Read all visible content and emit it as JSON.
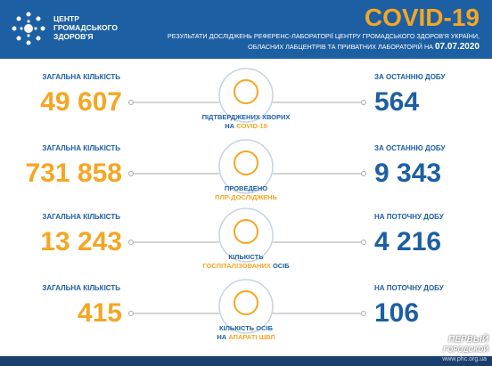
{
  "header": {
    "org": [
      "ЦЕНТР",
      "ГРОМАДСЬКОГО",
      "ЗДОРОВ'Я"
    ],
    "title": "COVID-19",
    "subtitle_line1": "РЕЗУЛЬТАТИ ДОСЛІДЖЕНЬ РЕФЕРЕНС-ЛАБОРАТОРІЇ ЦЕНТРУ ГРОМАДСЬКОГО ЗДОРОВ'Я УКРАЇНИ,",
    "subtitle_line2": "ОБЛАСНИХ ЛАБЦЕНТРІВ ТА ПРИВАТНИХ ЛАБОРАТОРІЙ НА",
    "date": "07.07.2020"
  },
  "rows": [
    {
      "left_label": "ЗАГАЛЬНА КІЛЬКІСТЬ",
      "left_value": "49 607",
      "right_label": "ЗА ОСТАННЮ ДОБУ",
      "right_value": "564",
      "caption": [
        [
          {
            "text": "ПІДТВЕРДЖЕНИХ ХВОРИХ",
            "accent": false
          }
        ],
        [
          {
            "text": "НА",
            "accent": false
          },
          {
            "text": "COVID-19",
            "accent": true
          }
        ]
      ]
    },
    {
      "left_label": "ЗАГАЛЬНА КІЛЬКІСТЬ",
      "left_value": "731 858",
      "right_label": "ЗА ОСТАННЮ ДОБУ",
      "right_value": "9 343",
      "caption": [
        [
          {
            "text": "ПРОВЕДЕНО",
            "accent": false
          }
        ],
        [
          {
            "text": "ПЛР-ДОСЛІДЖЕНЬ",
            "accent": true
          }
        ]
      ]
    },
    {
      "left_label": "ЗАГАЛЬНА КІЛЬКІСТЬ",
      "left_value": "13 243",
      "right_label": "НА ПОТОЧНУ ДОБУ",
      "right_value": "4 216",
      "caption": [
        [
          {
            "text": "КІЛЬКІСТЬ",
            "accent": false
          }
        ],
        [
          {
            "text": "ГОСПІТАЛІЗОВАНИХ",
            "accent": true
          },
          {
            "text": "ОСІБ",
            "accent": false
          }
        ]
      ]
    },
    {
      "left_label": "ЗАГАЛЬНА КІЛЬКІСТЬ",
      "left_value": "415",
      "right_label": "НА ПОТОЧНУ ДОБУ",
      "right_value": "106",
      "caption": [
        [
          {
            "text": "КІЛЬКІСТЬ ОСІБ",
            "accent": false
          }
        ],
        [
          {
            "text": "НА",
            "accent": false
          },
          {
            "text": "АПАРАТІ ШВЛ",
            "accent": true
          }
        ]
      ]
    }
  ],
  "footer": {
    "url": "www.phc.org.ua",
    "watermark": [
      "ПЕРВЫЙ",
      "ГОРОДСКОЙ"
    ]
  }
}
